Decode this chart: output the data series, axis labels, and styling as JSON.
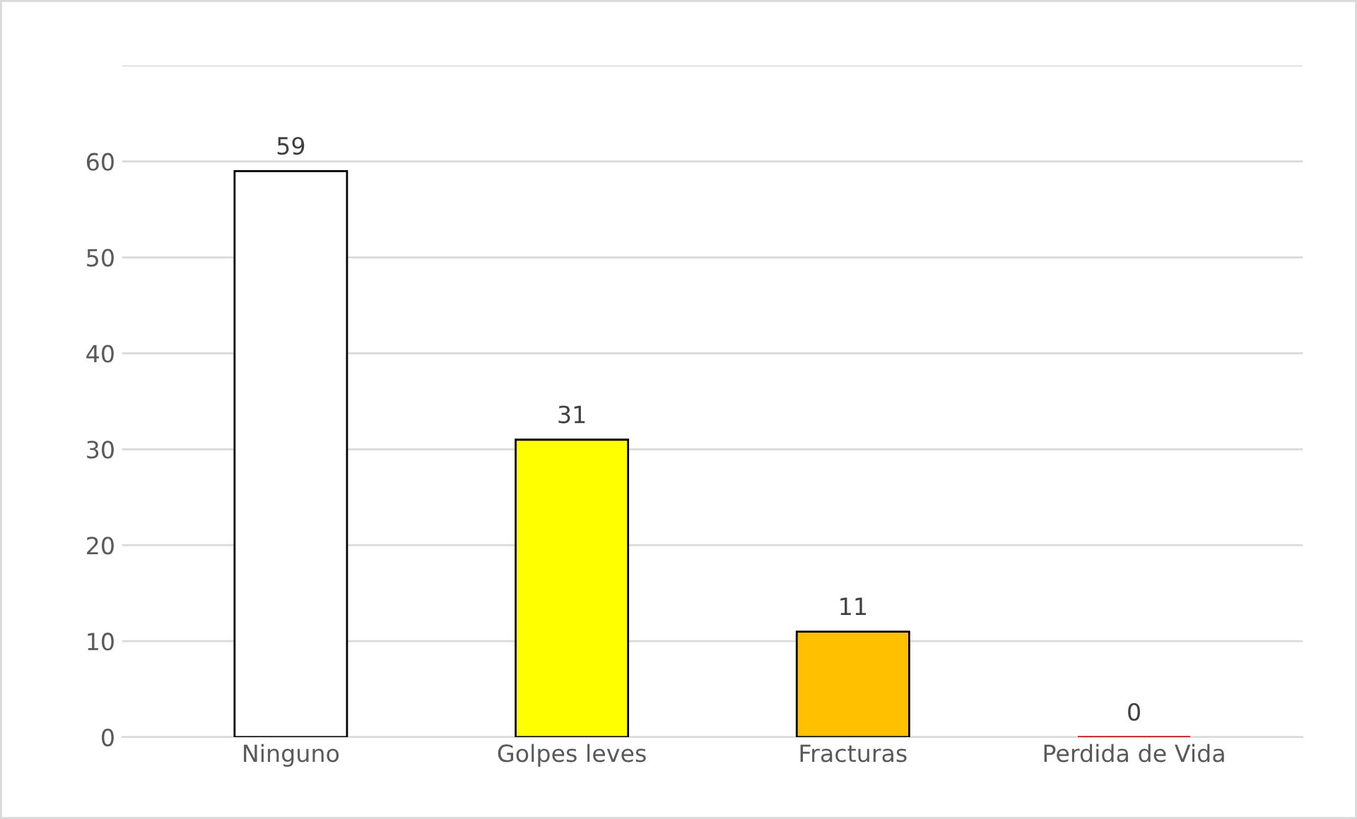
{
  "chart_data": {
    "type": "bar",
    "categories": [
      "Ninguno",
      "Golpes leves",
      "Fracturas",
      "Perdida de Vida"
    ],
    "values": [
      59,
      31,
      11,
      0
    ],
    "colors": [
      "#ffffff",
      "#ffff00",
      "#ffc000",
      "#c00000"
    ],
    "ylim": [
      0,
      70
    ],
    "yticks": [
      0,
      10,
      20,
      30,
      40,
      50,
      60,
      {
        "value": 70,
        "label": null
      }
    ],
    "grid": "y",
    "data_labels": true
  }
}
